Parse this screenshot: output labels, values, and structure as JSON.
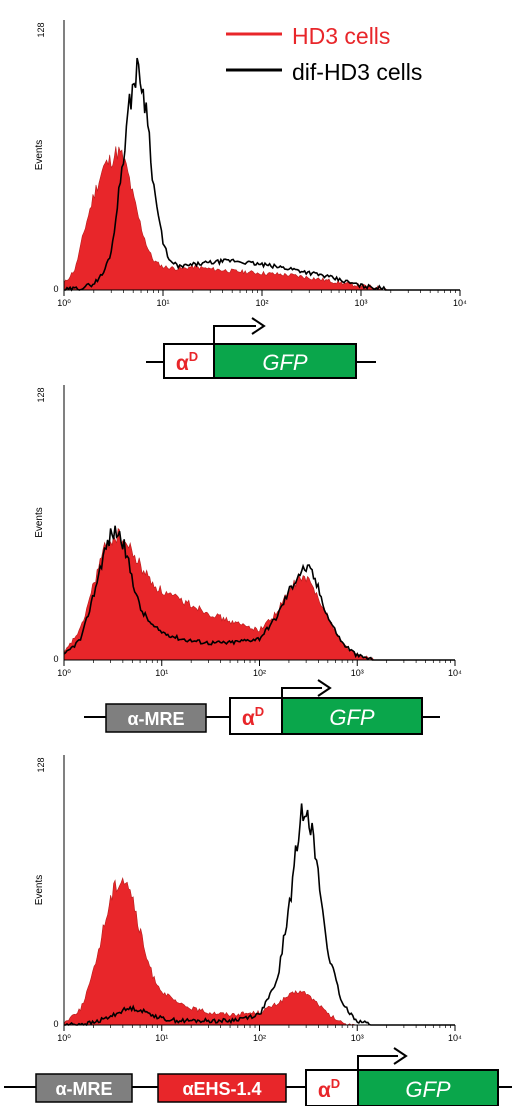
{
  "legend": {
    "position": "top-right",
    "items": [
      {
        "label": "HD3 cells",
        "color": "#e8262a",
        "style": "filled"
      },
      {
        "label": "dif-HD3 cells",
        "color": "#000000",
        "style": "line"
      }
    ]
  },
  "colors": {
    "hd3_fill": "#e8262a",
    "dif_line": "#000000",
    "gfp_box": "#0aa64b",
    "mre_box": "#7f7f7f",
    "ehs_box": "#e8262a",
    "alpha_text": "#e8262a"
  },
  "chart_data": [
    {
      "type": "area",
      "panel": 1,
      "ylabel": "Events",
      "x_scale": "log",
      "xlim": [
        1,
        10000
      ],
      "ylim": [
        0,
        128
      ],
      "y_ticks": [
        "0",
        "128"
      ],
      "x_ticks": [
        "10⁰",
        "10¹",
        "10²",
        "10³",
        "10⁴"
      ],
      "series": [
        {
          "name": "HD3 cells",
          "style": "filled",
          "x": [
            1,
            1.3,
            1.6,
            2,
            2.5,
            3,
            3.5,
            4,
            4.5,
            5,
            6,
            7,
            8,
            10,
            15,
            20,
            30,
            50,
            100,
            200,
            400,
            700,
            1000,
            1500,
            2000
          ],
          "y": [
            3,
            10,
            28,
            45,
            58,
            62,
            66,
            62,
            54,
            44,
            30,
            20,
            14,
            11,
            10,
            11,
            10,
            9,
            8,
            7,
            5,
            3,
            2,
            1,
            0
          ]
        },
        {
          "name": "dif-HD3 cells",
          "style": "line",
          "x": [
            1,
            1.5,
            2,
            2.5,
            3,
            3.5,
            4,
            4.5,
            5,
            5.5,
            6,
            7,
            8,
            10,
            12,
            15,
            20,
            30,
            50,
            100,
            200,
            400,
            700,
            1000,
            1500,
            2000
          ],
          "y": [
            0,
            1,
            3,
            8,
            18,
            42,
            65,
            85,
            98,
            104,
            100,
            82,
            50,
            22,
            13,
            11,
            12,
            13,
            14,
            12,
            10,
            7,
            4,
            2,
            1,
            0
          ]
        }
      ]
    },
    {
      "type": "area",
      "panel": 2,
      "ylabel": "Events",
      "x_scale": "log",
      "xlim": [
        1,
        10000
      ],
      "ylim": [
        0,
        128
      ],
      "y_ticks": [
        "0",
        "128"
      ],
      "x_ticks": [
        "10⁰",
        "10¹",
        "10²",
        "10³",
        "10⁴"
      ],
      "series": [
        {
          "name": "HD3 cells",
          "style": "filled",
          "x": [
            1,
            1.5,
            2,
            2.5,
            3,
            3.5,
            4,
            5,
            6,
            8,
            10,
            15,
            20,
            30,
            50,
            70,
            100,
            150,
            200,
            250,
            300,
            400,
            500,
            700,
            1000,
            1500
          ],
          "y": [
            3,
            15,
            35,
            50,
            56,
            58,
            56,
            50,
            44,
            36,
            32,
            28,
            26,
            22,
            18,
            16,
            14,
            22,
            32,
            38,
            38,
            30,
            20,
            8,
            2,
            0
          ]
        },
        {
          "name": "dif-HD3 cells",
          "style": "line",
          "x": [
            1,
            1.5,
            2,
            2.5,
            3,
            3.5,
            4,
            5,
            6,
            8,
            10,
            15,
            20,
            30,
            50,
            100,
            150,
            200,
            250,
            300,
            350,
            400,
            500,
            700,
            1000,
            1500
          ],
          "y": [
            2,
            10,
            30,
            48,
            58,
            60,
            55,
            38,
            24,
            16,
            13,
            10,
            9,
            8,
            8,
            10,
            20,
            32,
            40,
            43,
            40,
            33,
            20,
            8,
            2,
            0
          ]
        }
      ]
    },
    {
      "type": "area",
      "panel": 3,
      "ylabel": "Events",
      "x_scale": "log",
      "xlim": [
        1,
        10000
      ],
      "ylim": [
        0,
        128
      ],
      "y_ticks": [
        "0",
        "128"
      ],
      "x_ticks": [
        "10⁰",
        "10¹",
        "10²",
        "10³",
        "10⁴"
      ],
      "series": [
        {
          "name": "HD3 cells",
          "style": "filled",
          "x": [
            1,
            1.5,
            2,
            2.5,
            3,
            3.5,
            4,
            4.5,
            5,
            6,
            7,
            8,
            10,
            15,
            20,
            30,
            50,
            100,
            150,
            200,
            250,
            300,
            400,
            500,
            700,
            1000
          ],
          "y": [
            1,
            8,
            25,
            45,
            60,
            68,
            70,
            68,
            60,
            44,
            32,
            24,
            16,
            10,
            8,
            6,
            5,
            6,
            10,
            14,
            16,
            15,
            10,
            5,
            1,
            0
          ]
        },
        {
          "name": "dif-HD3 cells",
          "style": "line",
          "x": [
            1,
            2,
            3,
            4,
            5,
            6,
            8,
            10,
            15,
            20,
            30,
            50,
            100,
            150,
            200,
            250,
            280,
            300,
            330,
            400,
            500,
            700,
            1000,
            1500
          ],
          "y": [
            0,
            1,
            4,
            7,
            8,
            7,
            5,
            3,
            2,
            2,
            2,
            2,
            5,
            20,
            55,
            90,
            104,
            106,
            98,
            70,
            35,
            10,
            2,
            0
          ]
        }
      ]
    }
  ],
  "constructs": [
    {
      "parts": [
        {
          "kind": "promoter",
          "label": "α",
          "sup": "D"
        },
        {
          "kind": "gene",
          "label": "GFP"
        }
      ]
    },
    {
      "parts": [
        {
          "kind": "element",
          "label": "α-MRE"
        },
        {
          "kind": "promoter",
          "label": "α",
          "sup": "D"
        },
        {
          "kind": "gene",
          "label": "GFP"
        }
      ]
    },
    {
      "parts": [
        {
          "kind": "element",
          "label": "α-MRE"
        },
        {
          "kind": "element",
          "label": "αEHS-1.4"
        },
        {
          "kind": "promoter",
          "label": "α",
          "sup": "D"
        },
        {
          "kind": "gene",
          "label": "GFP"
        }
      ]
    }
  ]
}
